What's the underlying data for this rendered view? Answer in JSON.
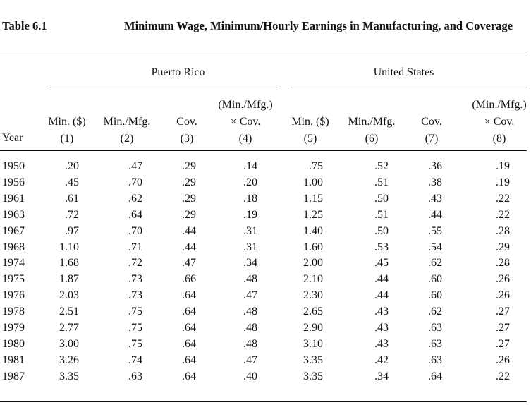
{
  "table": {
    "label": "Table 6.1",
    "title": "Minimum Wage, Minimum/Hourly Earnings in Manufacturing, and Coverage",
    "groups": [
      "Puerto Rico",
      "United States"
    ],
    "columns": [
      {
        "line1": "",
        "line2": "Min. ($)",
        "line3": "(1)"
      },
      {
        "line1": "",
        "line2": "Min./Mfg.",
        "line3": "(2)"
      },
      {
        "line1": "",
        "line2": "Cov.",
        "line3": "(3)"
      },
      {
        "line1": "(Min./Mfg.)",
        "line2": "× Cov.",
        "line3": "(4)"
      },
      {
        "line1": "",
        "line2": "Min. ($)",
        "line3": "(5)"
      },
      {
        "line1": "",
        "line2": "Min./Mfg.",
        "line3": "(6)"
      },
      {
        "line1": "",
        "line2": "Cov.",
        "line3": "(7)"
      },
      {
        "line1": "(Min./Mfg.)",
        "line2": "× Cov.",
        "line3": "(8)"
      }
    ],
    "year_header": "Year",
    "rows": [
      [
        "1950",
        ".20",
        ".47",
        ".29",
        ".14",
        ".75",
        ".52",
        ".36",
        ".19"
      ],
      [
        "1956",
        ".45",
        ".70",
        ".29",
        ".20",
        "1.00",
        ".51",
        ".38",
        ".19"
      ],
      [
        "1961",
        ".61",
        ".62",
        ".29",
        ".18",
        "1.15",
        ".50",
        ".43",
        ".22"
      ],
      [
        "1963",
        ".72",
        ".64",
        ".29",
        ".19",
        "1.25",
        ".51",
        ".44",
        ".22"
      ],
      [
        "1967",
        ".97",
        ".70",
        ".44",
        ".31",
        "1.40",
        ".50",
        ".55",
        ".28"
      ],
      [
        "1968",
        "1.10",
        ".71",
        ".44",
        ".31",
        "1.60",
        ".53",
        ".54",
        ".29"
      ],
      [
        "1974",
        "1.68",
        ".72",
        ".47",
        ".34",
        "2.00",
        ".45",
        ".62",
        ".28"
      ],
      [
        "1975",
        "1.87",
        ".73",
        ".66",
        ".48",
        "2.10",
        ".44",
        ".60",
        ".26"
      ],
      [
        "1976",
        "2.03",
        ".73",
        ".64",
        ".47",
        "2.30",
        ".44",
        ".60",
        ".26"
      ],
      [
        "1978",
        "2.51",
        ".75",
        ".64",
        ".48",
        "2.65",
        ".43",
        ".62",
        ".27"
      ],
      [
        "1979",
        "2.77",
        ".75",
        ".64",
        ".48",
        "2.90",
        ".43",
        ".63",
        ".27"
      ],
      [
        "1980",
        "3.00",
        ".75",
        ".64",
        ".48",
        "3.10",
        ".43",
        ".63",
        ".27"
      ],
      [
        "1981",
        "3.26",
        ".74",
        ".64",
        ".47",
        "3.35",
        ".42",
        ".63",
        ".26"
      ],
      [
        "1987",
        "3.35",
        ".63",
        ".64",
        ".40",
        "3.35",
        ".34",
        ".64",
        ".22"
      ]
    ]
  }
}
